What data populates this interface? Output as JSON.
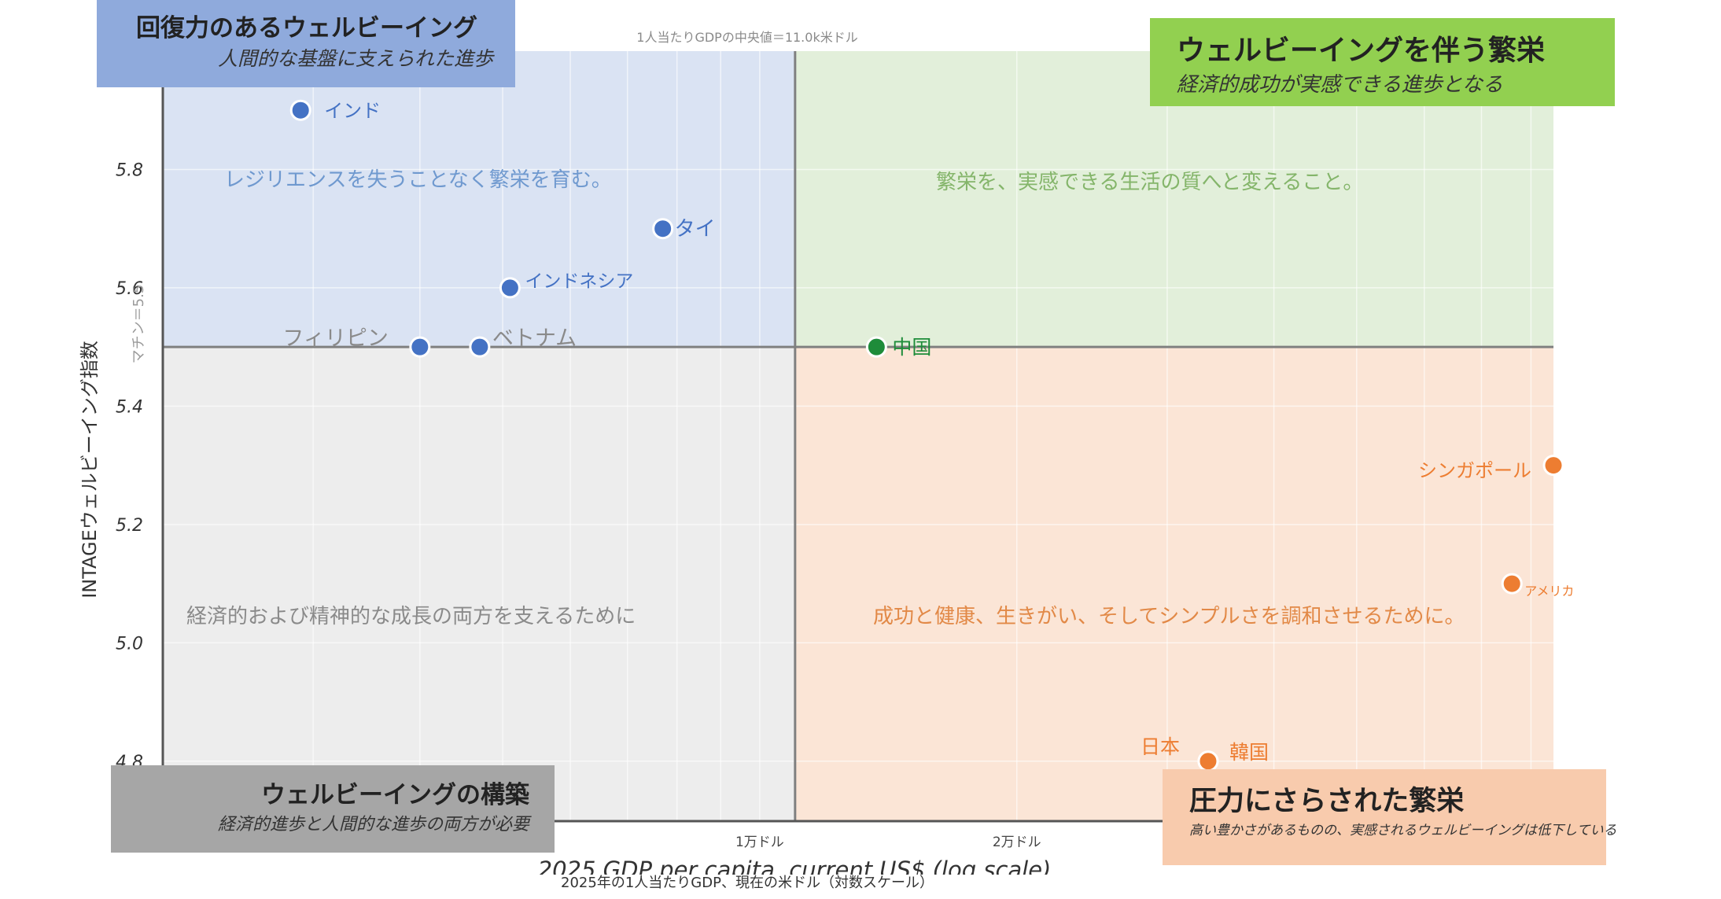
{
  "chart_data": {
    "type": "scatter",
    "title": "1人当たりGDPの中央値＝11.0k米ドル",
    "xlabel": "2025 GDP per capita, current US$ (log scale)",
    "xlabel_note": "2025年の1人当たりGDP、現在の米ドル（対数スケール）",
    "ylabel": "INTAGEウェルビーイング指数",
    "x_scale": "log",
    "xlim": [
      2000,
      85000
    ],
    "ylim": [
      4.7,
      6.0
    ],
    "x_ticks": [
      {
        "value": 10000,
        "label": "1万ドル"
      },
      {
        "value": 20000,
        "label": "2万ドル"
      }
    ],
    "y_ticks": [
      {
        "value": 4.8,
        "label": "4.8"
      },
      {
        "value": 5.0,
        "label": "5.0"
      },
      {
        "value": 5.2,
        "label": "5.2"
      },
      {
        "value": 5.4,
        "label": "5.4"
      },
      {
        "value": 5.6,
        "label": "5.6"
      },
      {
        "value": 5.8,
        "label": "5.8"
      }
    ],
    "grid": true,
    "median_x": {
      "value": 11000,
      "label": "1人当たりGDPの中央値＝11.0k米ドル"
    },
    "median_y": {
      "value": 5.5,
      "label": "マチン＝5.5"
    },
    "quadrant_colors": {
      "top_left": "#dae3f3",
      "top_right": "#e2efda",
      "bottom_left": "#ededed",
      "bottom_right": "#fbe5d6"
    },
    "group_colors": {
      "resilient": "#4472c4",
      "prosper": "#1e8c3a",
      "pressure": "#ed7d31"
    },
    "points": [
      {
        "label": "インド",
        "x": 2900,
        "y": 5.9,
        "group": "resilient"
      },
      {
        "label": "タイ",
        "x": 7700,
        "y": 5.7,
        "group": "resilient"
      },
      {
        "label": "インドネシア",
        "x": 5100,
        "y": 5.6,
        "group": "resilient"
      },
      {
        "label": "フィリピン",
        "x": 4000,
        "y": 5.5,
        "group": "resilient"
      },
      {
        "label": "ベトナム",
        "x": 4700,
        "y": 5.5,
        "group": "resilient"
      },
      {
        "label": "中国",
        "x": 13700,
        "y": 5.5,
        "group": "prosper"
      },
      {
        "label": "シンガポール",
        "x": 85000,
        "y": 5.3,
        "group": "pressure"
      },
      {
        "label": "アメリカ",
        "x": 76000,
        "y": 5.1,
        "group": "pressure"
      },
      {
        "label": "日本",
        "x": 33500,
        "y": 4.8,
        "group": "pressure"
      },
      {
        "label": "韓国",
        "x": 33500,
        "y": 4.8,
        "group": "pressure"
      }
    ],
    "quadrant_notes": [
      {
        "quadrant": "top_left",
        "text": "レジリエンスを失うことなく繁栄を育む。"
      },
      {
        "quadrant": "top_right",
        "text": "繁栄を、実感できる生活の質へと変えること。"
      },
      {
        "quadrant": "bottom_left",
        "text": "経済的および精神的な成長の両方を支えるために"
      },
      {
        "quadrant": "bottom_right",
        "text": "成功と健康、生きがい、そしてシンプルさを調和させるために。"
      }
    ]
  },
  "quadrant_boxes": {
    "top_left": {
      "title": "回復力のあるウェルビーイング",
      "subtitle": "人間的な基盤に支えられた進歩"
    },
    "top_right": {
      "title": "ウェルビーイングを伴う繁栄",
      "subtitle": "経済的成功が実感できる進歩となる"
    },
    "bottom_left": {
      "title": "ウェルビーイングの構築",
      "subtitle": "経済的進歩と人間的な進歩の両方が必要"
    },
    "bottom_right": {
      "title": "圧力にさらされた繁栄",
      "subtitle": "高い豊かさがあるものの、実感されるウェルビーイングは低下している"
    }
  }
}
